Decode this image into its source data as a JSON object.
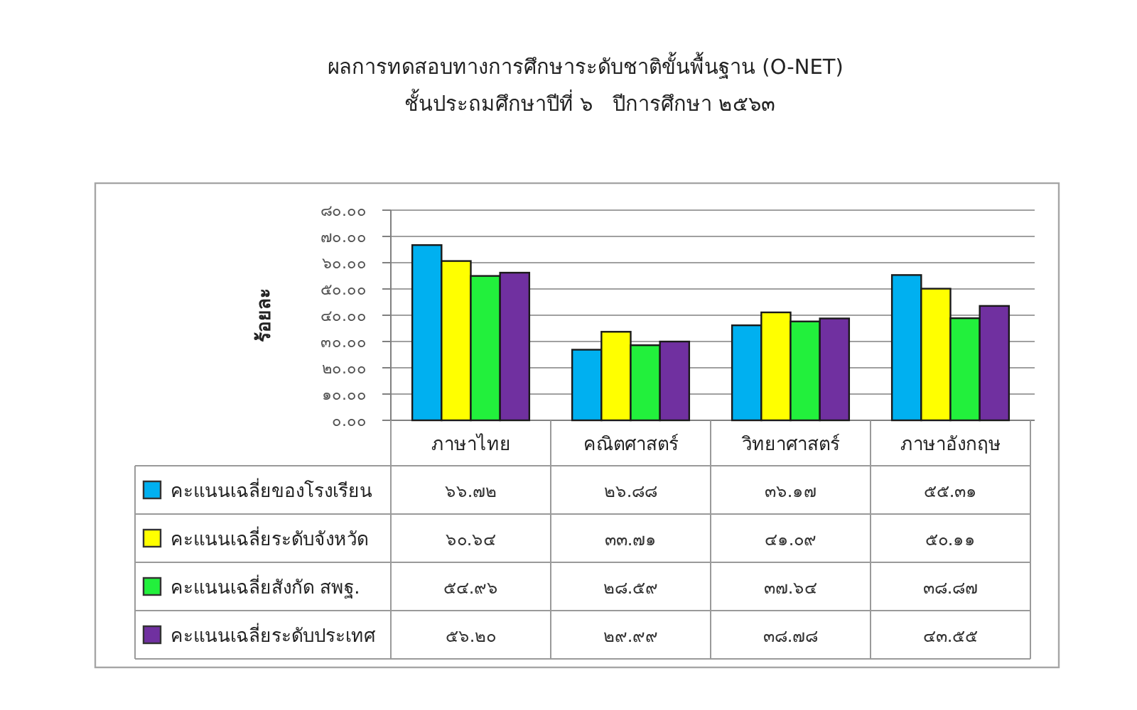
{
  "chart_data": {
    "type": "bar",
    "title": "ผลการทดสอบทางการศึกษาระดับชาติขั้นพื้นฐาน (O-NET)",
    "subtitle": "ชั้นประถมศึกษาปีที่ ๖   ปีการศึกษา ๒๕๖๓",
    "ylabel": "ร้อยละ",
    "categories": [
      "ภาษาไทย",
      "คณิตศาสตร์",
      "วิทยาศาสตร์",
      "ภาษาอังกฤษ"
    ],
    "series": [
      {
        "name": "คะแนนเฉลี่ยของโรงเรียน",
        "color": "#00b0f0",
        "values": [
          66.72,
          26.88,
          36.17,
          55.31
        ],
        "value_labels": [
          "๖๖.๗๒",
          "๒๖.๘๘",
          "๓๖.๑๗",
          "๕๕.๓๑"
        ]
      },
      {
        "name": "คะแนนเฉลี่ยระดับจังหวัด",
        "color": "#ffff00",
        "values": [
          60.64,
          33.71,
          41.09,
          50.11
        ],
        "value_labels": [
          "๖๐.๖๔",
          "๓๓.๗๑",
          "๔๑.๐๙",
          "๕๐.๑๑"
        ]
      },
      {
        "name": "คะแนนเฉลี่ยสังกัด สพฐ.",
        "color": "#22f03c",
        "values": [
          54.96,
          28.59,
          37.64,
          38.87
        ],
        "value_labels": [
          "๕๔.๙๖",
          "๒๘.๕๙",
          "๓๗.๖๔",
          "๓๘.๘๗"
        ]
      },
      {
        "name": "คะแนนเฉลี่ยระดับประเทศ",
        "color": "#7030a0",
        "values": [
          56.2,
          29.99,
          38.78,
          43.55
        ],
        "value_labels": [
          "๕๖.๒๐",
          "๒๙.๙๙",
          "๓๘.๗๘",
          "๔๓.๕๕"
        ]
      }
    ],
    "ylim": [
      0,
      80
    ],
    "yticks": [
      {
        "value": 0,
        "label": "๐.๐๐"
      },
      {
        "value": 10,
        "label": "๑๐.๐๐"
      },
      {
        "value": 20,
        "label": "๒๐.๐๐"
      },
      {
        "value": 30,
        "label": "๓๐.๐๐"
      },
      {
        "value": 40,
        "label": "๔๐.๐๐"
      },
      {
        "value": 50,
        "label": "๕๐.๐๐"
      },
      {
        "value": 60,
        "label": "๖๐.๐๐"
      },
      {
        "value": 70,
        "label": "๗๐.๐๐"
      },
      {
        "value": 80,
        "label": "๘๐.๐๐"
      }
    ],
    "grid": "y",
    "legend": "bottom"
  }
}
